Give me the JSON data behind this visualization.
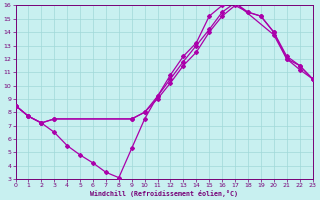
{
  "bg_color": "#c8f0f0",
  "line_color": "#aa00aa",
  "grid_color": "#a0d8d8",
  "xlabel": "Windchill (Refroidissement éolien,°C)",
  "xlim": [
    0,
    23
  ],
  "ylim": [
    3,
    16
  ],
  "xticks": [
    0,
    1,
    2,
    3,
    4,
    5,
    6,
    7,
    8,
    9,
    10,
    11,
    12,
    13,
    14,
    15,
    16,
    17,
    18,
    19,
    20,
    21,
    22,
    23
  ],
  "yticks": [
    3,
    4,
    5,
    6,
    7,
    8,
    9,
    10,
    11,
    12,
    13,
    14,
    15,
    16
  ],
  "line1_x": [
    0,
    1,
    2,
    3,
    4,
    5,
    6,
    7,
    8,
    9,
    10,
    11,
    12,
    13,
    14,
    15,
    16,
    17,
    20,
    21,
    22,
    23
  ],
  "line1_y": [
    8.5,
    7.7,
    7.2,
    6.5,
    5.5,
    4.8,
    4.2,
    3.5,
    3.1,
    5.3,
    7.5,
    9.2,
    10.8,
    12.2,
    13.2,
    15.2,
    16.0,
    16.2,
    13.8,
    12.0,
    11.2,
    10.5
  ],
  "line2_x": [
    0,
    1,
    2,
    3,
    9,
    10,
    11,
    12,
    13,
    14,
    15,
    16,
    17,
    18,
    19,
    20,
    21,
    22,
    23
  ],
  "line2_y": [
    8.5,
    7.7,
    7.2,
    7.5,
    7.5,
    8.0,
    9.2,
    10.5,
    11.8,
    13.0,
    14.2,
    15.5,
    16.2,
    15.5,
    15.2,
    14.0,
    12.2,
    11.5,
    10.5
  ],
  "line3_x": [
    0,
    1,
    2,
    3,
    9,
    10,
    11,
    12,
    13,
    14,
    15,
    16,
    17,
    18,
    19,
    20,
    21,
    22,
    23
  ],
  "line3_y": [
    8.5,
    7.7,
    7.2,
    7.5,
    7.5,
    8.0,
    9.0,
    10.2,
    11.5,
    12.5,
    14.0,
    15.2,
    16.0,
    15.5,
    15.2,
    14.0,
    12.0,
    11.5,
    10.5
  ]
}
